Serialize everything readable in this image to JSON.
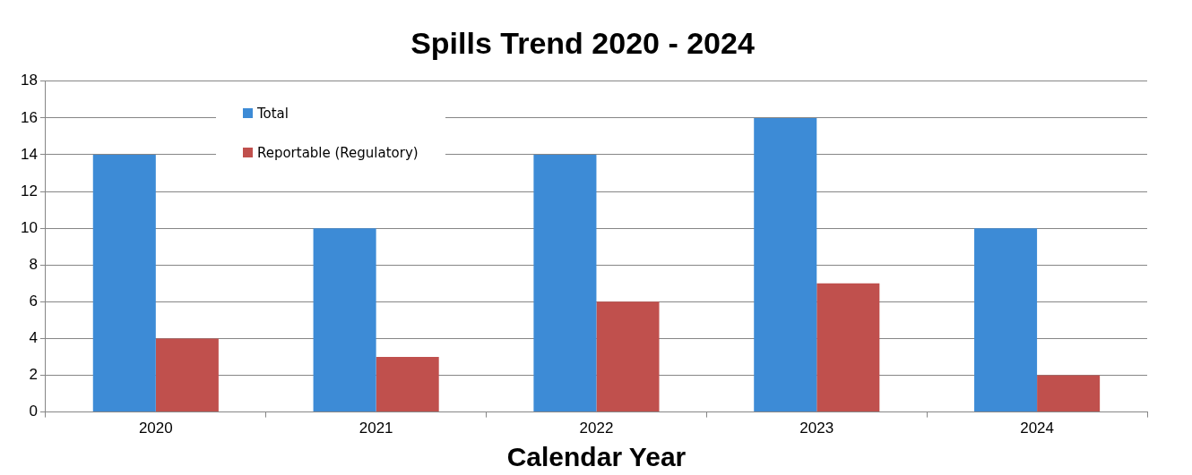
{
  "chart_data": {
    "type": "bar",
    "title": "Spills Trend 2020 - 2024",
    "xlabel": "Calendar Year",
    "categories": [
      "2020",
      "2021",
      "2022",
      "2023",
      "2024"
    ],
    "series": [
      {
        "name": "Total",
        "color": "#3d8bd6",
        "values": [
          14,
          10,
          14,
          16,
          10
        ]
      },
      {
        "name": "Reportable (Regulatory)",
        "color": "#c0504d",
        "values": [
          4,
          3,
          6,
          7,
          2
        ]
      }
    ],
    "ylim": [
      0,
      18
    ],
    "yticks": [
      0,
      2,
      4,
      6,
      8,
      10,
      12,
      14,
      16,
      18
    ],
    "grid": "y",
    "legend": "top left"
  }
}
